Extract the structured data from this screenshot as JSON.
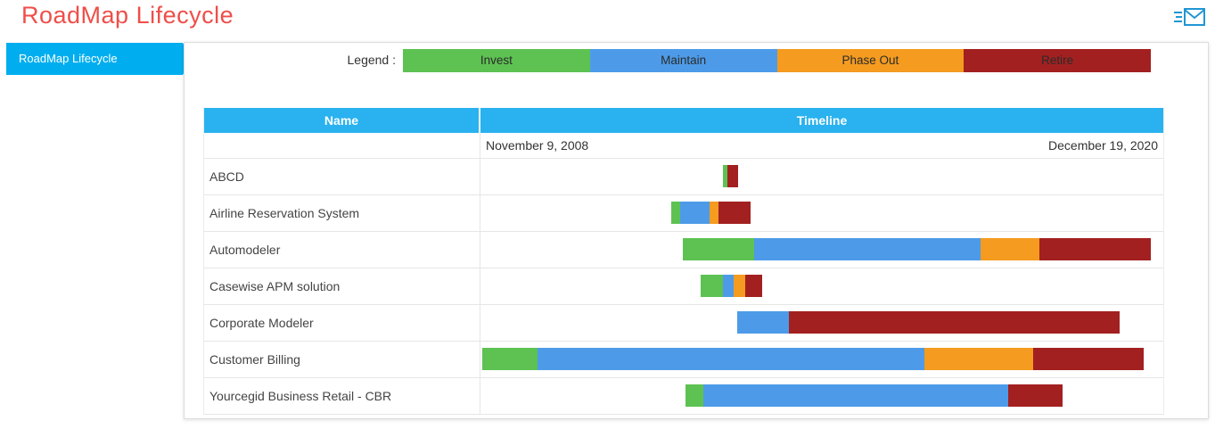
{
  "header": {
    "title": "RoadMap Lifecycle"
  },
  "sidebar": {
    "items": [
      {
        "label": "RoadMap Lifecycle",
        "active": true
      }
    ]
  },
  "legend": {
    "label": "Legend :",
    "items": [
      {
        "key": "invest",
        "label": "Invest",
        "color": "#5dc252"
      },
      {
        "key": "maintain",
        "label": "Maintain",
        "color": "#4d9be8"
      },
      {
        "key": "phase_out",
        "label": "Phase Out",
        "color": "#f49b20"
      },
      {
        "key": "retire",
        "label": "Retire",
        "color": "#a32020"
      }
    ]
  },
  "table": {
    "columns": [
      "Name",
      "Timeline"
    ],
    "start_date": "November 9, 2008",
    "end_date": "December 19, 2020"
  },
  "chart_data": {
    "type": "gantt",
    "title": "RoadMap Lifecycle",
    "timeline": {
      "start": "November 9, 2008",
      "end": "December 19, 2020"
    },
    "phases": [
      "Invest",
      "Maintain",
      "Phase Out",
      "Retire"
    ],
    "phase_colors": {
      "invest": "#5dc252",
      "maintain": "#4d9be8",
      "phase_out": "#f49b20",
      "retire": "#a32020"
    },
    "rows": [
      {
        "name": "ABCD",
        "start_pct": 35.5,
        "segments": [
          {
            "phase": "invest",
            "width_pct": 0.7
          },
          {
            "phase": "retire",
            "width_pct": 1.5
          }
        ]
      },
      {
        "name": "Airline Reservation System",
        "start_pct": 27.9,
        "segments": [
          {
            "phase": "invest",
            "width_pct": 1.4
          },
          {
            "phase": "maintain",
            "width_pct": 4.2
          },
          {
            "phase": "phase_out",
            "width_pct": 1.3
          },
          {
            "phase": "retire",
            "width_pct": 4.8
          }
        ]
      },
      {
        "name": "Automodeler",
        "start_pct": 29.6,
        "segments": [
          {
            "phase": "invest",
            "width_pct": 10.5
          },
          {
            "phase": "maintain",
            "width_pct": 33.2
          },
          {
            "phase": "phase_out",
            "width_pct": 8.5
          },
          {
            "phase": "retire",
            "width_pct": 16.4
          }
        ]
      },
      {
        "name": "Casewise APM solution",
        "start_pct": 32.2,
        "segments": [
          {
            "phase": "invest",
            "width_pct": 3.3
          },
          {
            "phase": "maintain",
            "width_pct": 1.6
          },
          {
            "phase": "phase_out",
            "width_pct": 1.7
          },
          {
            "phase": "retire",
            "width_pct": 2.5
          }
        ]
      },
      {
        "name": "Corporate Modeler",
        "start_pct": 37.6,
        "segments": [
          {
            "phase": "maintain",
            "width_pct": 7.6
          },
          {
            "phase": "retire",
            "width_pct": 48.4
          }
        ]
      },
      {
        "name": "Customer Billing",
        "start_pct": 0.3,
        "segments": [
          {
            "phase": "invest",
            "width_pct": 8.0
          },
          {
            "phase": "maintain",
            "width_pct": 56.7
          },
          {
            "phase": "phase_out",
            "width_pct": 16.0
          },
          {
            "phase": "retire",
            "width_pct": 16.1
          }
        ]
      },
      {
        "name": "Yourcegid Business Retail - CBR",
        "start_pct": 30.0,
        "segments": [
          {
            "phase": "invest",
            "width_pct": 2.6
          },
          {
            "phase": "maintain",
            "width_pct": 44.7
          },
          {
            "phase": "retire",
            "width_pct": 7.9
          }
        ]
      }
    ]
  }
}
